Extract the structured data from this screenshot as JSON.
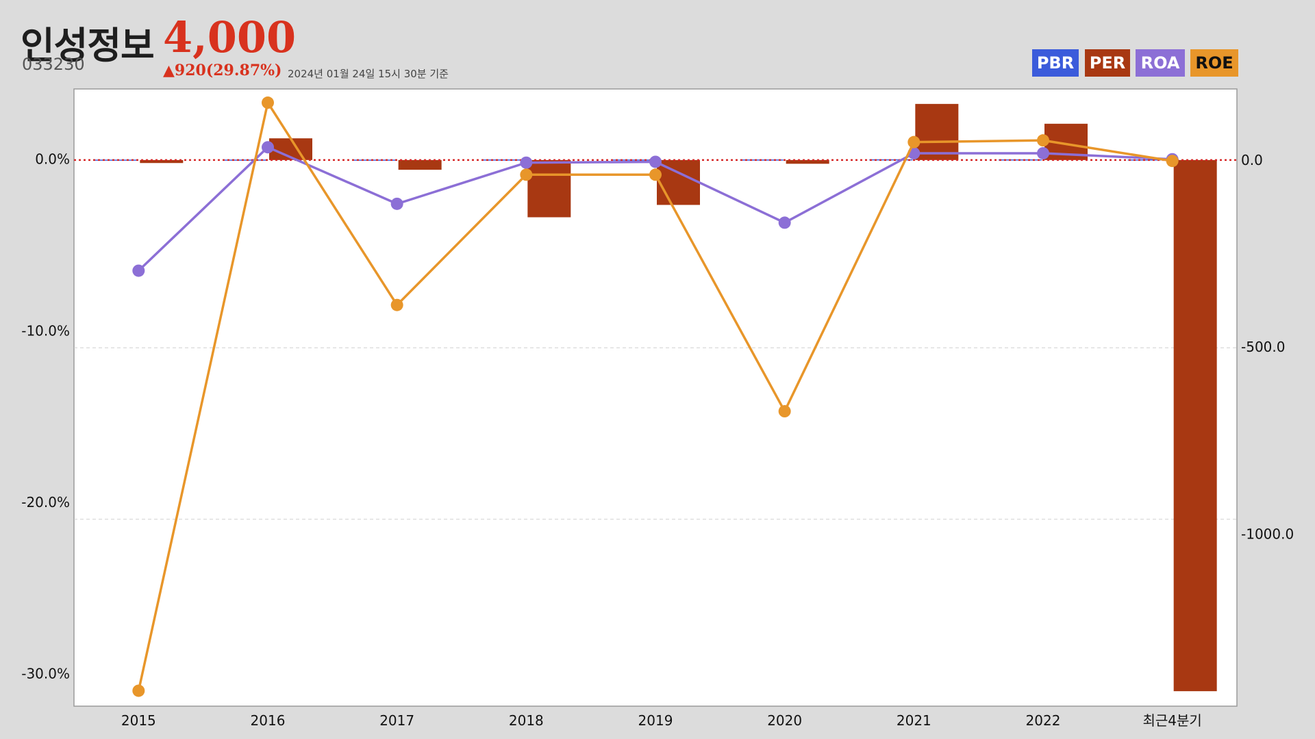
{
  "header": {
    "company_name": "인성정보",
    "price": "4,000",
    "stock_code": "033230",
    "change": "▲920(29.87%)",
    "timestamp": "2024년 01월 24일 15시 30분 기준"
  },
  "legend": [
    {
      "key": "pbr",
      "label": "PBR",
      "bg": "#3b5bdb",
      "fg": "#ffffff"
    },
    {
      "key": "per",
      "label": "PER",
      "bg": "#a83812",
      "fg": "#ffffff"
    },
    {
      "key": "roa",
      "label": "ROA",
      "bg": "#8c6fd6",
      "fg": "#ffffff"
    },
    {
      "key": "roe",
      "label": "ROE",
      "bg": "#e8962a",
      "fg": "#111111"
    }
  ],
  "chart_data": {
    "type": "bar",
    "categories": [
      "2015",
      "2016",
      "2017",
      "2018",
      "2019",
      "2020",
      "2021",
      "2022",
      "최근4분기"
    ],
    "left_axis": {
      "ticks": [
        0,
        -10,
        -20,
        -30
      ],
      "tick_labels": [
        "0.0%",
        "-10.0%",
        "-20.0%",
        "-30.0%"
      ],
      "range": [
        4.1,
        -31.9
      ]
    },
    "right_axis": {
      "ticks": [
        0,
        -500,
        -1000
      ],
      "tick_labels": [
        "0.0",
        "-500.0",
        "-1000.0"
      ],
      "range": [
        190,
        -1460
      ]
    },
    "series": [
      {
        "name": "PBR",
        "type": "bar",
        "axis": "right",
        "color": "#3b5bdb",
        "values": [
          1.0,
          1.1,
          1.0,
          1.4,
          1.3,
          1.4,
          1.8,
          1.6,
          1.5
        ]
      },
      {
        "name": "PER",
        "type": "bar",
        "axis": "right",
        "color": "#a83812",
        "values": [
          -8,
          58,
          -26,
          -153,
          -120,
          -10,
          150,
          97,
          -1420
        ]
      },
      {
        "name": "ROA",
        "type": "line",
        "axis": "left",
        "color": "#8c6fd6",
        "values": [
          -6.5,
          0.7,
          -2.6,
          -0.2,
          -0.15,
          -3.7,
          0.35,
          0.35,
          0.0
        ]
      },
      {
        "name": "ROE",
        "type": "line",
        "axis": "left",
        "color": "#e8962a",
        "values": [
          -31.0,
          3.3,
          -8.5,
          -0.9,
          -0.9,
          -14.7,
          1.0,
          1.1,
          -0.1
        ]
      }
    ],
    "zero_line_color": "#d62828",
    "grid": true
  }
}
